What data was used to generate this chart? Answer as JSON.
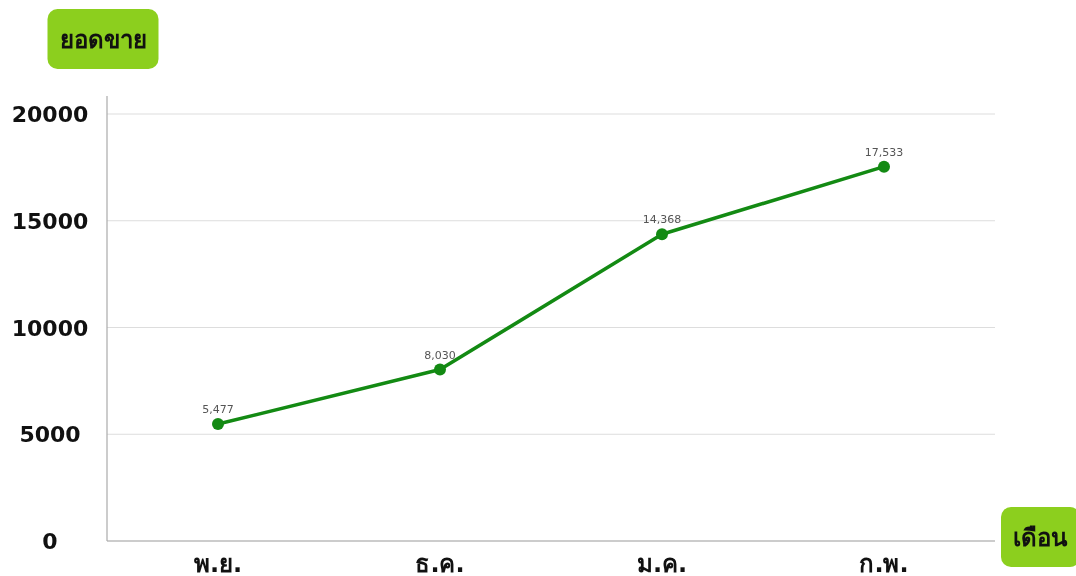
{
  "chart_data": {
    "type": "line",
    "xlabel": "เดือน",
    "ylabel": "ยอดขาย",
    "categories": [
      "พ.ย.",
      "ธ.ค.",
      "ม.ค.",
      "ก.พ."
    ],
    "values": [
      5477,
      8030,
      14368,
      17533
    ],
    "value_labels": [
      "5,477",
      "8,030",
      "14,368",
      "17,533"
    ],
    "color": "#138a13",
    "marker": "circle",
    "line_style": "solid",
    "ylim": [
      0,
      20000
    ],
    "yticks": [
      0,
      5000,
      10000,
      15000,
      20000
    ],
    "grid": "y"
  }
}
